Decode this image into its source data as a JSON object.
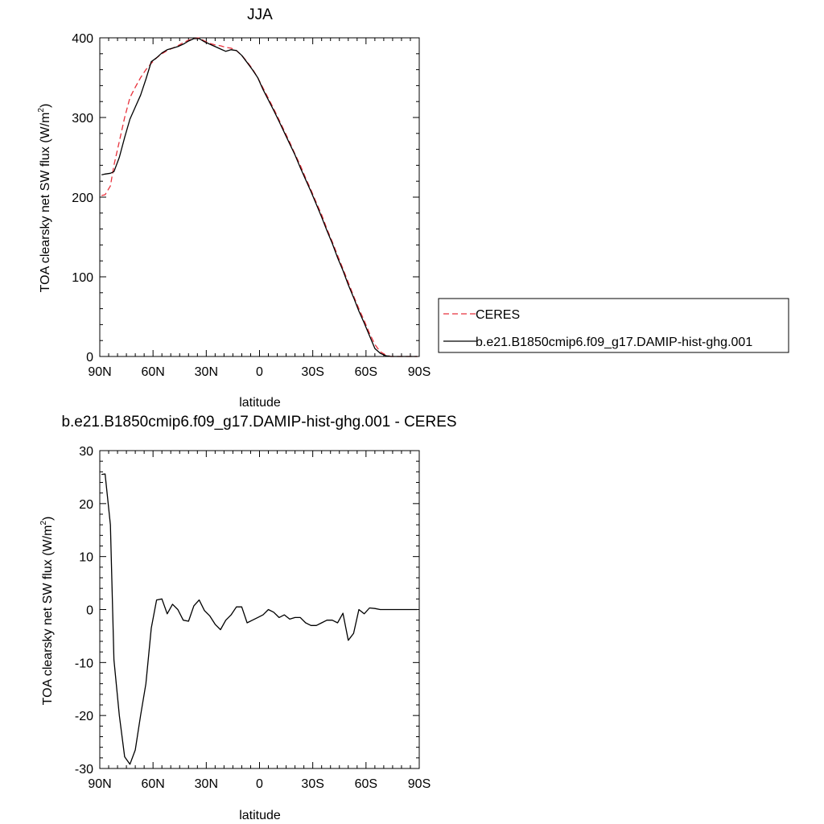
{
  "chart_data": [
    {
      "type": "line",
      "title": "JJA",
      "xlabel": "latitude",
      "ylabel": "TOA clearsky net SW flux (W/m",
      "ylabel_sup": "2",
      "ylabel_close": ")",
      "xlim": [
        90,
        -90
      ],
      "ylim": [
        0,
        400
      ],
      "x_ticks": [
        {
          "value": 90,
          "label": "90N"
        },
        {
          "value": 60,
          "label": "60N"
        },
        {
          "value": 30,
          "label": "30N"
        },
        {
          "value": 0,
          "label": "0"
        },
        {
          "value": -30,
          "label": "30S"
        },
        {
          "value": -60,
          "label": "60S"
        },
        {
          "value": -90,
          "label": "90S"
        }
      ],
      "y_ticks": [
        0,
        100,
        200,
        300,
        400
      ],
      "legend": "right",
      "series": [
        {
          "name": "CERES",
          "color": "#e8323c",
          "dash": "dashed",
          "x": [
            89,
            87,
            84,
            82,
            79,
            76,
            73,
            70,
            67,
            64,
            61,
            58,
            55,
            52,
            49,
            46,
            43,
            40,
            37,
            34,
            31,
            28,
            25,
            22,
            19,
            16,
            13,
            10,
            7,
            4,
            1,
            -2,
            -5,
            -8,
            -11,
            -14,
            -17,
            -20,
            -23,
            -26,
            -29,
            -32,
            -35,
            -38,
            -41,
            -44,
            -47,
            -50,
            -53,
            -56,
            -59,
            -62,
            -65,
            -68,
            -71,
            -74,
            -77,
            -80,
            -83,
            -86,
            -89
          ],
          "y": [
            202,
            203,
            214,
            240,
            270,
            300,
            325,
            338,
            350,
            360,
            368,
            375,
            380,
            384,
            387,
            390,
            394,
            397,
            399,
            400,
            396,
            393,
            391,
            390,
            388,
            387,
            384,
            378,
            370,
            361,
            350,
            337,
            324,
            311,
            297,
            283,
            269,
            254,
            240,
            224,
            209,
            193,
            178,
            160,
            144,
            127,
            110,
            93,
            76,
            60,
            45,
            29,
            15,
            6,
            2,
            0,
            0,
            0,
            0,
            0,
            0
          ]
        },
        {
          "name": "b.e21.B1850cmip6.f09_g17.DAMIP-hist-ghg.001",
          "color": "#000000",
          "dash": "solid",
          "x": [
            89,
            87,
            84,
            82,
            79,
            76,
            73,
            70,
            67,
            64,
            61,
            58,
            55,
            52,
            49,
            46,
            43,
            40,
            37,
            34,
            31,
            28,
            25,
            22,
            19,
            16,
            13,
            10,
            7,
            4,
            1,
            -2,
            -5,
            -8,
            -11,
            -14,
            -17,
            -20,
            -23,
            -26,
            -29,
            -32,
            -35,
            -38,
            -41,
            -44,
            -47,
            -50,
            -53,
            -56,
            -59,
            -62,
            -65,
            -68,
            -71,
            -74,
            -77,
            -80,
            -83,
            -86,
            -89
          ],
          "y": [
            228,
            229,
            230,
            232,
            250,
            275,
            298,
            313,
            328,
            348,
            370,
            375,
            381,
            385,
            387,
            389,
            392,
            396,
            399,
            399,
            395,
            392,
            389,
            386,
            383,
            385,
            384,
            378,
            369,
            360,
            350,
            335,
            322,
            309,
            295,
            281,
            267,
            253,
            237,
            222,
            207,
            191,
            175,
            158,
            142,
            124,
            108,
            90,
            74,
            57,
            42,
            26,
            10,
            4,
            1,
            0,
            0,
            0,
            0,
            0,
            0
          ]
        }
      ]
    },
    {
      "type": "line",
      "title": "b.e21.B1850cmip6.f09_g17.DAMIP-hist-ghg.001 - CERES",
      "xlabel": "latitude",
      "ylabel": "TOA clearsky net SW flux (W/m",
      "ylabel_sup": "2",
      "ylabel_close": ")",
      "xlim": [
        90,
        -90
      ],
      "ylim": [
        -30,
        30
      ],
      "x_ticks": [
        {
          "value": 90,
          "label": "90N"
        },
        {
          "value": 60,
          "label": "60N"
        },
        {
          "value": 30,
          "label": "30N"
        },
        {
          "value": 0,
          "label": "0"
        },
        {
          "value": -30,
          "label": "30S"
        },
        {
          "value": -60,
          "label": "60S"
        },
        {
          "value": -90,
          "label": "90S"
        }
      ],
      "y_ticks": [
        -30,
        -20,
        -10,
        0,
        10,
        20,
        30
      ],
      "series": [
        {
          "color": "#000000",
          "dash": "solid",
          "x": [
            89,
            87,
            84,
            82,
            79,
            76,
            73,
            70,
            67,
            64,
            61,
            58,
            55,
            52,
            49,
            46,
            43,
            40,
            37,
            34,
            31,
            28,
            25,
            22,
            19,
            16,
            13,
            10,
            7,
            4,
            1,
            -2,
            -5,
            -8,
            -11,
            -14,
            -17,
            -20,
            -23,
            -26,
            -29,
            -32,
            -35,
            -38,
            -41,
            -44,
            -47,
            -50,
            -53,
            -56,
            -59,
            -62,
            -65,
            -68,
            -71,
            -74,
            -77,
            -80,
            -83,
            -86,
            -89
          ],
          "y": [
            25.5,
            25.6,
            16.0,
            -9.5,
            -20.0,
            -27.8,
            -29.2,
            -26.5,
            -20.0,
            -14.0,
            -3.5,
            1.8,
            2.0,
            -0.8,
            1.0,
            0.0,
            -2.0,
            -2.2,
            0.7,
            1.8,
            -0.2,
            -1.2,
            -2.8,
            -3.8,
            -2.0,
            -1.0,
            0.5,
            0.5,
            -2.5,
            -2.0,
            -1.5,
            -1.0,
            0.0,
            -0.5,
            -1.5,
            -1.0,
            -1.8,
            -1.5,
            -1.5,
            -2.5,
            -3.0,
            -3.0,
            -2.5,
            -2.0,
            -2.0,
            -2.5,
            -0.7,
            -5.8,
            -4.5,
            0.0,
            -0.8,
            0.3,
            0.2,
            0.0,
            0.0,
            0.0,
            0.0,
            0.0,
            0.0,
            0.0,
            0.0
          ]
        }
      ]
    }
  ]
}
